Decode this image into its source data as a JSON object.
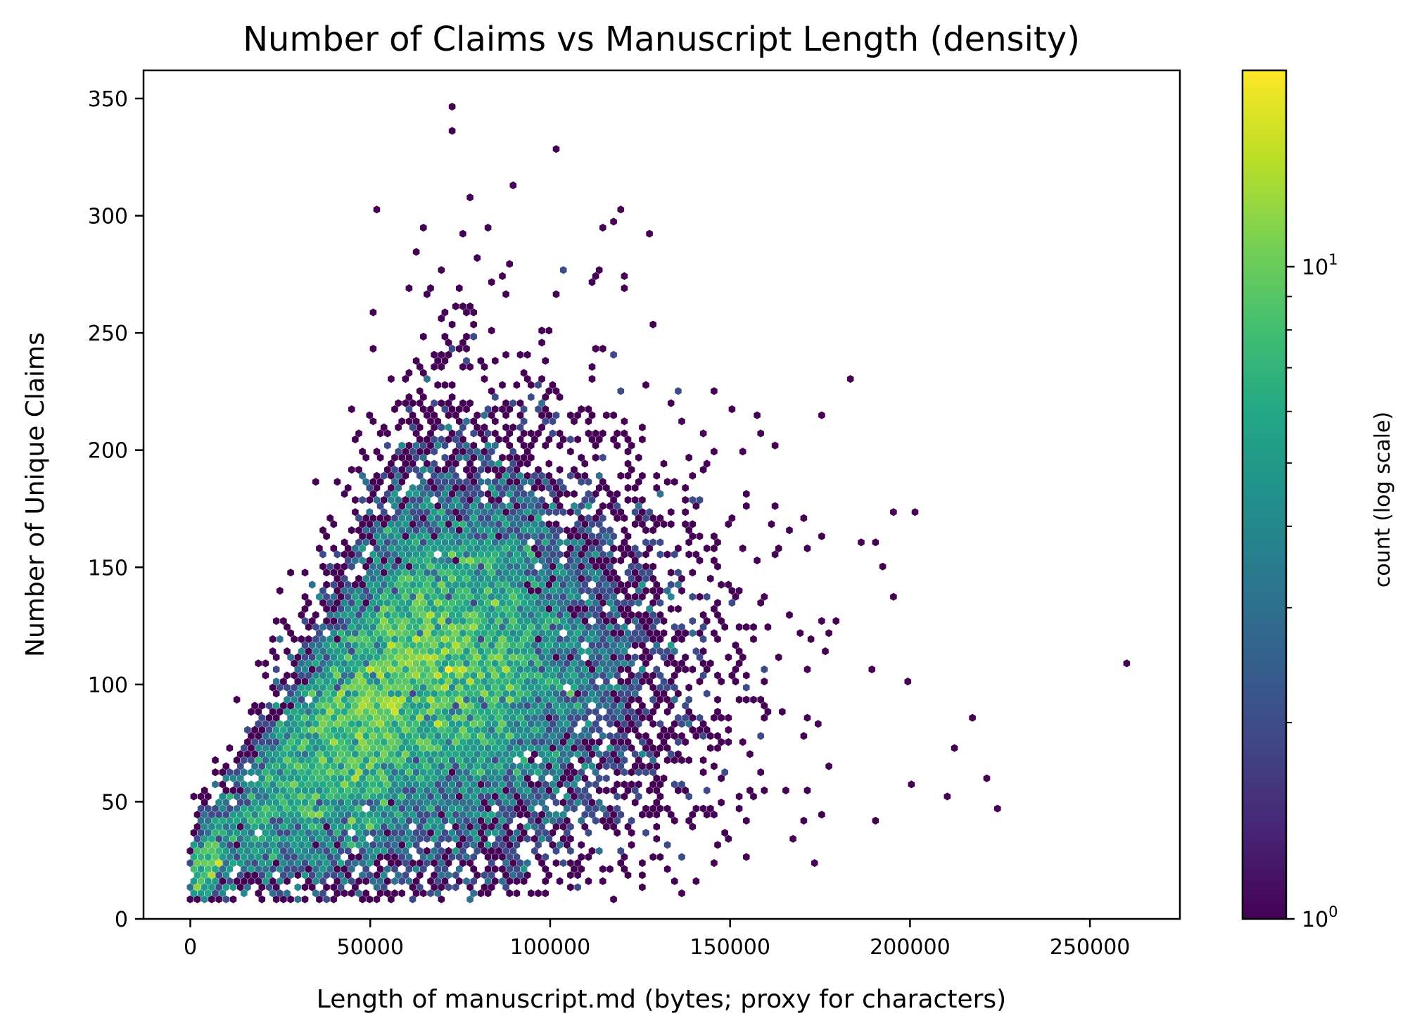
{
  "chart_data": {
    "type": "heatmap",
    "subtype": "hexbin",
    "title": "Number of Claims vs Manuscript Length (density)",
    "xlabel": "Length of manuscript.md (bytes; proxy for characters)",
    "ylabel": "Number of Unique Claims",
    "xlim": [
      -13000,
      275000
    ],
    "ylim": [
      0,
      362
    ],
    "xticks": [
      0,
      50000,
      100000,
      150000,
      200000,
      250000
    ],
    "xtick_labels": [
      "0",
      "50000",
      "100000",
      "150000",
      "200000",
      "250000"
    ],
    "yticks": [
      0,
      50,
      100,
      150,
      200,
      250,
      300,
      350
    ],
    "ytick_labels": [
      "0",
      "50",
      "100",
      "150",
      "200",
      "250",
      "300",
      "350"
    ],
    "grid": false,
    "colorbar": {
      "label": "count (log scale)",
      "scale": "log",
      "colormap": "viridis",
      "range": [
        1,
        20
      ],
      "ticks": [
        {
          "value": 1,
          "base": "10",
          "exp": "0"
        },
        {
          "value": 10,
          "base": "10",
          "exp": "1"
        }
      ],
      "minor_ticks": [
        2,
        3,
        4,
        5,
        6,
        7,
        8,
        9
      ]
    },
    "density_core": {
      "x_center": 65000,
      "y_center": 110,
      "peak_count": 20
    },
    "distribution": {
      "x_range_main": [
        0,
        160000
      ],
      "y_range_main": [
        10,
        350
      ],
      "bulk_x": [
        30000,
        120000
      ],
      "bulk_y": [
        55,
        200
      ]
    },
    "notable_points": [
      {
        "x": 72000,
        "y": 346
      },
      {
        "x": 72000,
        "y": 337
      },
      {
        "x": 101000,
        "y": 328
      },
      {
        "x": 51000,
        "y": 303
      },
      {
        "x": 78000,
        "y": 309
      },
      {
        "x": 90000,
        "y": 312
      },
      {
        "x": 115000,
        "y": 295
      },
      {
        "x": 184000,
        "y": 230
      },
      {
        "x": 157000,
        "y": 216
      },
      {
        "x": 175000,
        "y": 215
      },
      {
        "x": 201000,
        "y": 173
      },
      {
        "x": 193000,
        "y": 150
      },
      {
        "x": 196000,
        "y": 138
      },
      {
        "x": 189000,
        "y": 106
      },
      {
        "x": 200000,
        "y": 100
      },
      {
        "x": 261000,
        "y": 110
      },
      {
        "x": 218000,
        "y": 87
      },
      {
        "x": 213000,
        "y": 72
      },
      {
        "x": 221000,
        "y": 61
      },
      {
        "x": 200000,
        "y": 58
      },
      {
        "x": 210000,
        "y": 53
      },
      {
        "x": 224000,
        "y": 48
      },
      {
        "x": 171000,
        "y": 42
      },
      {
        "x": 0,
        "y": 10
      },
      {
        "x": 1000,
        "y": 11
      },
      {
        "x": 82000,
        "y": 20
      }
    ]
  },
  "colors": {
    "viridis_low": "#440154",
    "viridis_mid": "#21918c",
    "viridis_high": "#fde725",
    "axis": "#000000",
    "background": "#ffffff"
  }
}
